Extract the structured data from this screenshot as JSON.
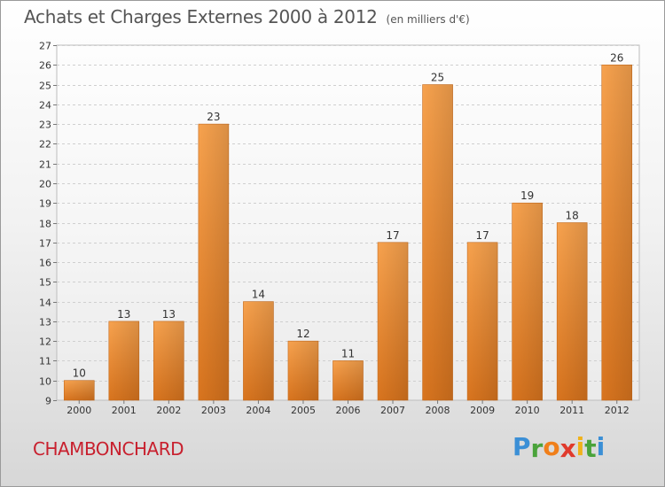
{
  "title": "Achats et Charges Externes 2000 à 2012",
  "unit": "(en milliers d'€)",
  "place": "CHAMBONCHARD",
  "logo": {
    "letters": [
      "P",
      "r",
      "o",
      "x",
      "i",
      "t",
      "i"
    ],
    "colors": [
      "#3b8fd6",
      "#4aa33b",
      "#f07f1a",
      "#e03a2c",
      "#f0b21a",
      "#4aa33b",
      "#3b8fd6"
    ]
  },
  "chart_data": {
    "type": "bar",
    "title": "Achats et Charges Externes 2000 à 2012",
    "xlabel": "",
    "ylabel": "",
    "categories": [
      "2000",
      "2001",
      "2002",
      "2003",
      "2004",
      "2005",
      "2006",
      "2007",
      "2008",
      "2009",
      "2010",
      "2011",
      "2012"
    ],
    "values": [
      10,
      13,
      13,
      23,
      14,
      12,
      11,
      17,
      25,
      17,
      19,
      18,
      26
    ],
    "ylim": [
      9,
      27
    ],
    "yticks": [
      9,
      10,
      11,
      12,
      13,
      14,
      15,
      16,
      17,
      18,
      19,
      20,
      21,
      22,
      23,
      24,
      25,
      26,
      27
    ],
    "grid": true,
    "bar_color": "#f0913a"
  }
}
